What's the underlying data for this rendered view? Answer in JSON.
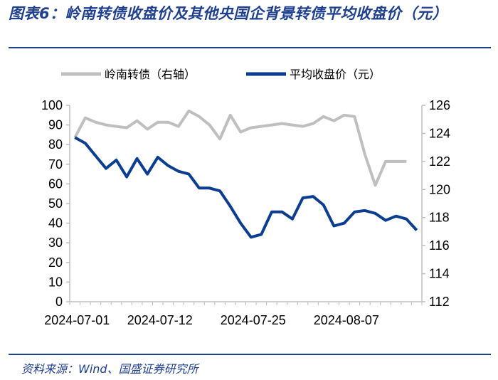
{
  "header": {
    "title": "图表6：岭南转债收盘价及其他央国企背景转债平均收盘价（元）"
  },
  "footer": {
    "source": "资料来源：Wind、国盛证券研究所"
  },
  "colors": {
    "title_blue": "#1f3f8f",
    "series_gray": "#bfbfbf",
    "series_blue": "#0b3d91"
  },
  "chart_data": {
    "type": "line",
    "title": "岭南转债收盘价及其他央国企背景转债平均收盘价（元）",
    "x_tick_labels": [
      "2024-07-01",
      "2024-07-12",
      "2024-07-25",
      "2024-08-07"
    ],
    "x_tick_indices": [
      0,
      8,
      17,
      26
    ],
    "n_points": 34,
    "left_axis": {
      "ylim": [
        0,
        100
      ],
      "ticks": [
        "0",
        "10",
        "20",
        "30",
        "40",
        "50",
        "60",
        "70",
        "80",
        "90",
        "100"
      ]
    },
    "right_axis": {
      "ylim": [
        112,
        126
      ],
      "ticks": [
        "112",
        "114",
        "116",
        "118",
        "120",
        "122",
        "124",
        "126"
      ]
    },
    "legend_position": "top",
    "series": [
      {
        "name": "岭南转债（右轴）",
        "axis": "right",
        "color": "#bfbfbf",
        "values": [
          123.7,
          125.1,
          124.8,
          124.6,
          124.5,
          124.4,
          124.9,
          124.3,
          124.8,
          124.8,
          124.5,
          125.6,
          125.2,
          124.6,
          123.6,
          125.3,
          124.1,
          124.4,
          124.5,
          124.6,
          124.7,
          124.6,
          124.5,
          124.7,
          125.2,
          124.9,
          125.3,
          125.2,
          122.5,
          120.3,
          122.0,
          122.0,
          122.0,
          null
        ]
      },
      {
        "name": "平均收盘价（元）",
        "axis": "right",
        "color": "#0b3d91",
        "values": [
          123.7,
          123.3,
          122.4,
          121.5,
          122.1,
          120.9,
          122.2,
          121.1,
          122.3,
          121.7,
          121.3,
          121.1,
          120.1,
          120.1,
          119.9,
          118.8,
          117.6,
          116.6,
          116.8,
          118.4,
          118.4,
          117.9,
          119.4,
          119.5,
          118.9,
          117.4,
          117.6,
          118.4,
          118.5,
          118.3,
          117.8,
          118.1,
          117.9,
          117.1
        ]
      }
    ]
  }
}
